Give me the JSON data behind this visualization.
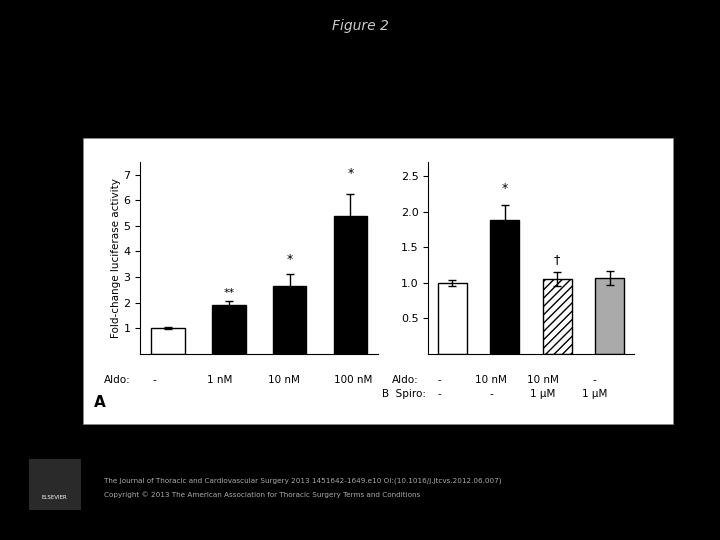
{
  "title": "Figure 2",
  "background_color": "#000000",
  "panel_bg": "#ffffff",
  "panel_A": {
    "bars": [
      1.0,
      1.9,
      2.65,
      5.4
    ],
    "errors": [
      0.05,
      0.15,
      0.45,
      0.85
    ],
    "colors": [
      "#ffffff",
      "#000000",
      "#000000",
      "#000000"
    ],
    "edge_colors": [
      "#000000",
      "#000000",
      "#000000",
      "#000000"
    ],
    "aldo_labels": [
      "-",
      "1 nM",
      "10 nM",
      "100 nM"
    ],
    "aldo_header": "Aldo:",
    "ylabel": "Fold-change luciferase activity",
    "ylim": [
      0,
      7.5
    ],
    "yticks": [
      1,
      2,
      3,
      4,
      5,
      6,
      7
    ],
    "annotations": [
      "",
      "**",
      "*",
      "*"
    ],
    "panel_label": "A"
  },
  "panel_B": {
    "bars": [
      1.0,
      1.88,
      1.05,
      1.07
    ],
    "errors": [
      0.04,
      0.22,
      0.1,
      0.1
    ],
    "colors": [
      "#ffffff",
      "#000000",
      "#ffffff",
      "#aaaaaa"
    ],
    "edge_colors": [
      "#000000",
      "#000000",
      "#000000",
      "#000000"
    ],
    "hatch": [
      "",
      "",
      "////",
      ""
    ],
    "aldo_labels": [
      "-",
      "10 nM",
      "10 nM",
      "-"
    ],
    "aldo_header": "Aldo:",
    "spiro_labels": [
      "-",
      "-",
      "1 μM",
      "1 μM"
    ],
    "spiro_header": "Spiro:",
    "ylim": [
      0,
      2.7
    ],
    "yticks": [
      0.5,
      1.0,
      1.5,
      2.0,
      2.5
    ],
    "annotations": [
      "",
      "*",
      "†",
      ""
    ],
    "panel_label": "B"
  },
  "footer_text": "The Journal of Thoracic and Cardiovascular Surgery 2013 1451642-1649.e10 OI:(10.1016/j.jtcvs.2012.06.007)",
  "footer_text2": "Copyright © 2013 The American Association for Thoracic Surgery Terms and Conditions",
  "title_color": "#cccccc",
  "footer_color": "#aaaaaa"
}
